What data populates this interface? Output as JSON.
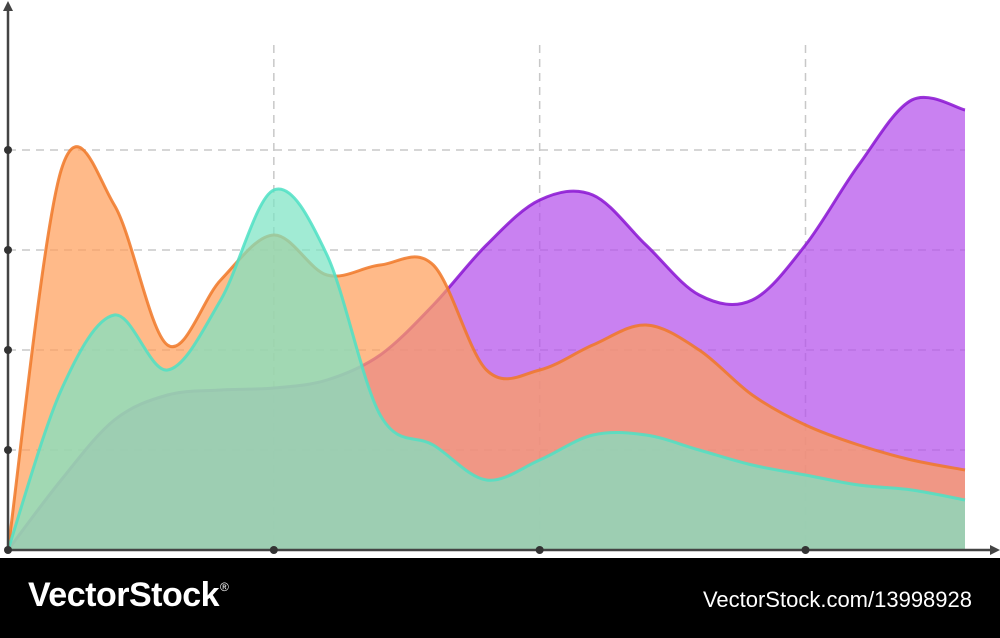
{
  "chart_data": {
    "type": "area",
    "x": [
      0,
      1,
      2,
      3,
      4,
      5,
      6,
      7,
      8,
      9,
      10,
      11,
      12,
      13,
      14,
      15,
      16,
      17,
      18
    ],
    "xlim": [
      0,
      18
    ],
    "ylim": [
      0,
      5
    ],
    "x_ticks": [
      5,
      10,
      15
    ],
    "y_ticks": [
      1,
      2,
      3,
      4
    ],
    "grid": true,
    "series": [
      {
        "color": "#b450ec",
        "stroke": "#8a14d2",
        "values": [
          0,
          0.7,
          1.3,
          1.55,
          1.6,
          1.62,
          1.7,
          1.95,
          2.45,
          3.05,
          3.5,
          3.55,
          3.05,
          2.55,
          2.5,
          3.05,
          3.85,
          4.5,
          4.4
        ]
      },
      {
        "color": "#ff9f5c",
        "stroke": "#f07828",
        "values": [
          0,
          3.8,
          3.45,
          2.05,
          2.7,
          3.15,
          2.75,
          2.85,
          2.85,
          1.8,
          1.8,
          2.05,
          2.25,
          2.0,
          1.55,
          1.25,
          1.05,
          0.9,
          0.8
        ]
      },
      {
        "color": "#7de3c4",
        "stroke": "#4fe0c4",
        "values": [
          0,
          1.6,
          2.35,
          1.8,
          2.5,
          3.6,
          2.95,
          1.35,
          1.05,
          0.7,
          0.9,
          1.15,
          1.15,
          1.0,
          0.85,
          0.75,
          0.65,
          0.6,
          0.5
        ]
      }
    ]
  },
  "footer": {
    "brand": "VectorStock",
    "trademark": "®",
    "stock_id": "VectorStock.com/13998928"
  }
}
